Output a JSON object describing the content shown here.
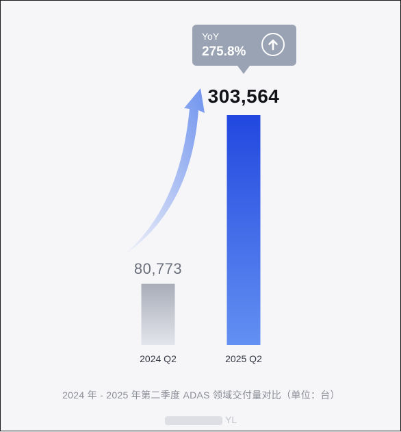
{
  "chart_data": {
    "type": "bar",
    "categories": [
      "2024 Q2",
      "2025 Q2"
    ],
    "values": [
      80773,
      303564
    ],
    "value_labels": [
      "80,773",
      "303,564"
    ],
    "ylim": [
      0,
      310000
    ],
    "grid": false,
    "caption": "2024 年 - 2025 年第二季度 ADAS 领域交付量对比（单位：台）",
    "annotation": {
      "label": "YoY",
      "value": "275.8%",
      "icon": "arrow-up-circle-icon"
    },
    "colors": {
      "bar_2024": [
        "#a9adb8",
        "#e3e5ec"
      ],
      "bar_2025": [
        "#2148df",
        "#6390f2"
      ],
      "growth_arrow": "#6f93ee",
      "tooltip_bg": "#9aa3b4"
    }
  },
  "watermark": {
    "text": "YL"
  }
}
